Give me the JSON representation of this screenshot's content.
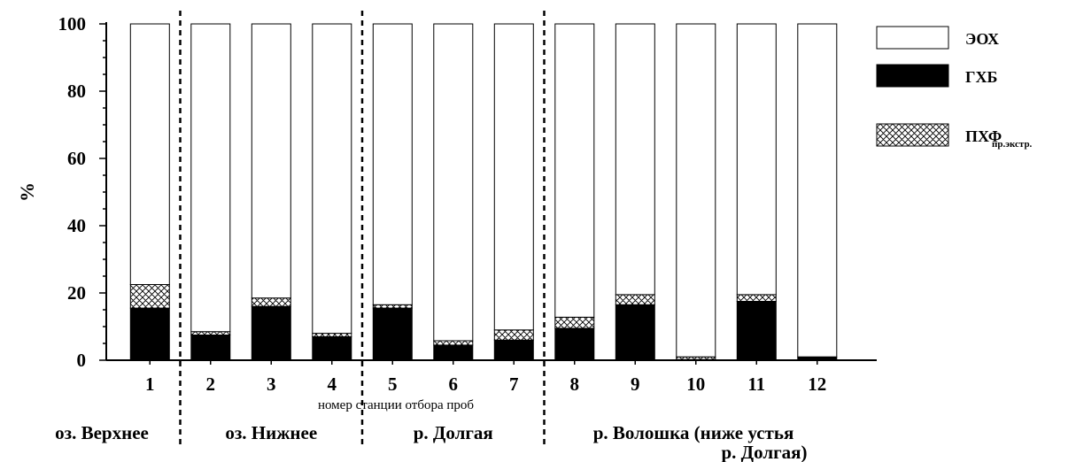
{
  "chart_data": {
    "type": "bar",
    "stacked": true,
    "categories": [
      "1",
      "2",
      "3",
      "4",
      "5",
      "6",
      "7",
      "8",
      "9",
      "10",
      "11",
      "12"
    ],
    "series": [
      {
        "name": "ГХБ",
        "key": "ghb",
        "values": [
          15.5,
          7.5,
          16.0,
          7.0,
          15.5,
          4.5,
          6.0,
          9.5,
          16.5,
          0.2,
          17.5,
          1.0
        ]
      },
      {
        "name": "ПХФ",
        "key": "pkhf",
        "values": [
          7.0,
          1.0,
          2.5,
          1.0,
          1.0,
          1.3,
          3.0,
          3.3,
          3.0,
          0.8,
          2.0,
          0.0
        ]
      },
      {
        "name": "ЭОХ",
        "key": "eokh",
        "values": [
          77.5,
          91.5,
          81.5,
          92.0,
          83.5,
          94.2,
          91.0,
          87.2,
          80.5,
          99.0,
          80.5,
          99.0
        ]
      }
    ],
    "legend_subscript": "пр.экстр.",
    "legend_order": [
      "eokh",
      "ghb",
      "pkhf"
    ],
    "ylabel": "%",
    "xlabel": "номер станции отбора проб",
    "ylim": [
      0,
      100
    ],
    "yticks": [
      "0",
      "20",
      "40",
      "60",
      "80",
      "100"
    ],
    "groups": [
      {
        "lines": [
          "оз. Верхнее"
        ],
        "stations": [
          1,
          1
        ]
      },
      {
        "lines": [
          "оз. Нижнее"
        ],
        "stations": [
          2,
          4
        ]
      },
      {
        "lines": [
          "р. Долгая"
        ],
        "stations": [
          5,
          7
        ]
      },
      {
        "lines": [
          "р. Волошка (ниже устья",
          "р. Долгая)"
        ],
        "stations": [
          8,
          12
        ]
      }
    ],
    "legend_position": "top-right",
    "colors": {
      "eokh": "#ffffff",
      "ghb": "#000000",
      "pkhf": "hatched"
    }
  }
}
